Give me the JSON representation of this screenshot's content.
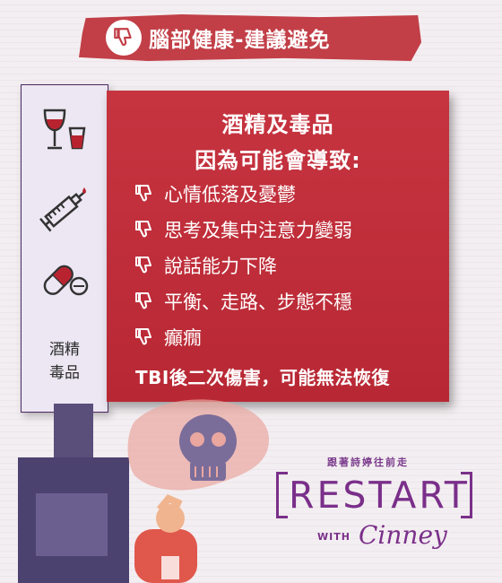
{
  "header": {
    "title": "腦部健康-建議避免",
    "icon": "thumbs-down-icon"
  },
  "side": {
    "icons": [
      "wine-glass-icon",
      "syringe-icon",
      "pills-icon"
    ],
    "label_line1": "酒精",
    "label_line2": "毒品"
  },
  "card": {
    "title_line1": "酒精及毒品",
    "title_line2": "因為可能會導致:",
    "items": [
      {
        "text": "心情低落及憂鬱",
        "icon": "thumbs-down-icon"
      },
      {
        "text": "思考及集中注意力變弱",
        "icon": "thumbs-down-icon"
      },
      {
        "text": "說話能力下降",
        "icon": "thumbs-down-icon"
      },
      {
        "text": "平衡、走路、步態不穩",
        "icon": "thumbs-down-icon"
      },
      {
        "text": "癲癇",
        "icon": "thumbs-down-icon"
      }
    ],
    "footnote": "TBI後二次傷害，可能無法恢復"
  },
  "logo": {
    "tagline": "跟著詩婷往前走",
    "word": "RESTART",
    "with": "WITH",
    "signature": "Cinney"
  },
  "colors": {
    "banner": "#c23f47",
    "card": "#c63440",
    "accent": "#7a2f8a"
  }
}
